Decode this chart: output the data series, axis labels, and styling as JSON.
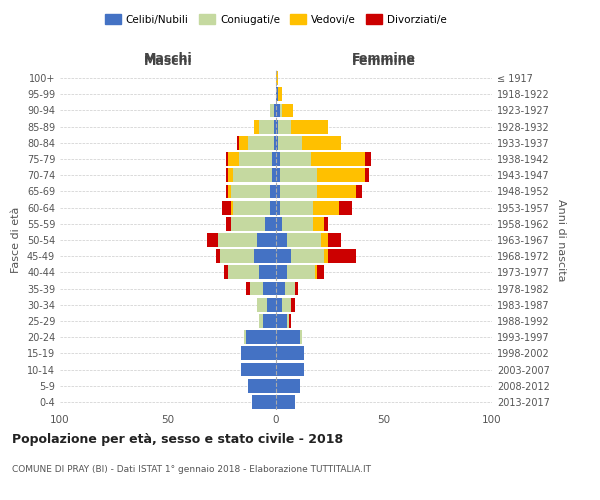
{
  "age_groups": [
    "0-4",
    "5-9",
    "10-14",
    "15-19",
    "20-24",
    "25-29",
    "30-34",
    "35-39",
    "40-44",
    "45-49",
    "50-54",
    "55-59",
    "60-64",
    "65-69",
    "70-74",
    "75-79",
    "80-84",
    "85-89",
    "90-94",
    "95-99",
    "100+"
  ],
  "birth_years": [
    "2013-2017",
    "2008-2012",
    "2003-2007",
    "1998-2002",
    "1993-1997",
    "1988-1992",
    "1983-1987",
    "1978-1982",
    "1973-1977",
    "1968-1972",
    "1963-1967",
    "1958-1962",
    "1953-1957",
    "1948-1952",
    "1943-1947",
    "1938-1942",
    "1933-1937",
    "1928-1932",
    "1923-1927",
    "1918-1922",
    "≤ 1917"
  ],
  "male": {
    "celibi": [
      11,
      13,
      16,
      16,
      14,
      6,
      4,
      6,
      8,
      10,
      9,
      5,
      3,
      3,
      2,
      2,
      1,
      1,
      1,
      0,
      0
    ],
    "coniugati": [
      0,
      0,
      0,
      0,
      1,
      2,
      5,
      6,
      14,
      16,
      18,
      16,
      17,
      18,
      18,
      15,
      12,
      7,
      2,
      0,
      0
    ],
    "vedovi": [
      0,
      0,
      0,
      0,
      0,
      0,
      0,
      0,
      0,
      0,
      0,
      0,
      1,
      1,
      2,
      5,
      4,
      2,
      0,
      0,
      0
    ],
    "divorziati": [
      0,
      0,
      0,
      0,
      0,
      0,
      0,
      2,
      2,
      2,
      5,
      2,
      4,
      1,
      1,
      1,
      1,
      0,
      0,
      0,
      0
    ]
  },
  "female": {
    "nubili": [
      9,
      11,
      13,
      13,
      11,
      5,
      3,
      4,
      5,
      7,
      5,
      3,
      2,
      2,
      2,
      2,
      1,
      1,
      2,
      1,
      0
    ],
    "coniugate": [
      0,
      0,
      0,
      0,
      1,
      1,
      4,
      5,
      13,
      15,
      16,
      14,
      15,
      17,
      17,
      14,
      11,
      6,
      1,
      0,
      0
    ],
    "vedove": [
      0,
      0,
      0,
      0,
      0,
      0,
      0,
      0,
      1,
      2,
      3,
      5,
      12,
      18,
      22,
      25,
      18,
      17,
      5,
      2,
      1
    ],
    "divorziate": [
      0,
      0,
      0,
      0,
      0,
      1,
      2,
      1,
      3,
      13,
      6,
      2,
      6,
      3,
      2,
      3,
      0,
      0,
      0,
      0,
      0
    ]
  },
  "colors": {
    "celibi": "#4472c4",
    "coniugati": "#c5d9a0",
    "vedovi": "#ffc000",
    "divorziati": "#cc0000"
  },
  "title": "Popolazione per età, sesso e stato civile - 2018",
  "subtitle": "COMUNE DI PRAY (BI) - Dati ISTAT 1° gennaio 2018 - Elaborazione TUTTITALIA.IT",
  "xlabel_left": "Maschi",
  "xlabel_right": "Femmine",
  "ylabel": "Fasce di età",
  "ylabel_right": "Anni di nascita",
  "xlim": 100,
  "background_color": "#ffffff",
  "legend_labels": [
    "Celibi/Nubili",
    "Coniugati/e",
    "Vedovi/e",
    "Divorziati/e"
  ]
}
